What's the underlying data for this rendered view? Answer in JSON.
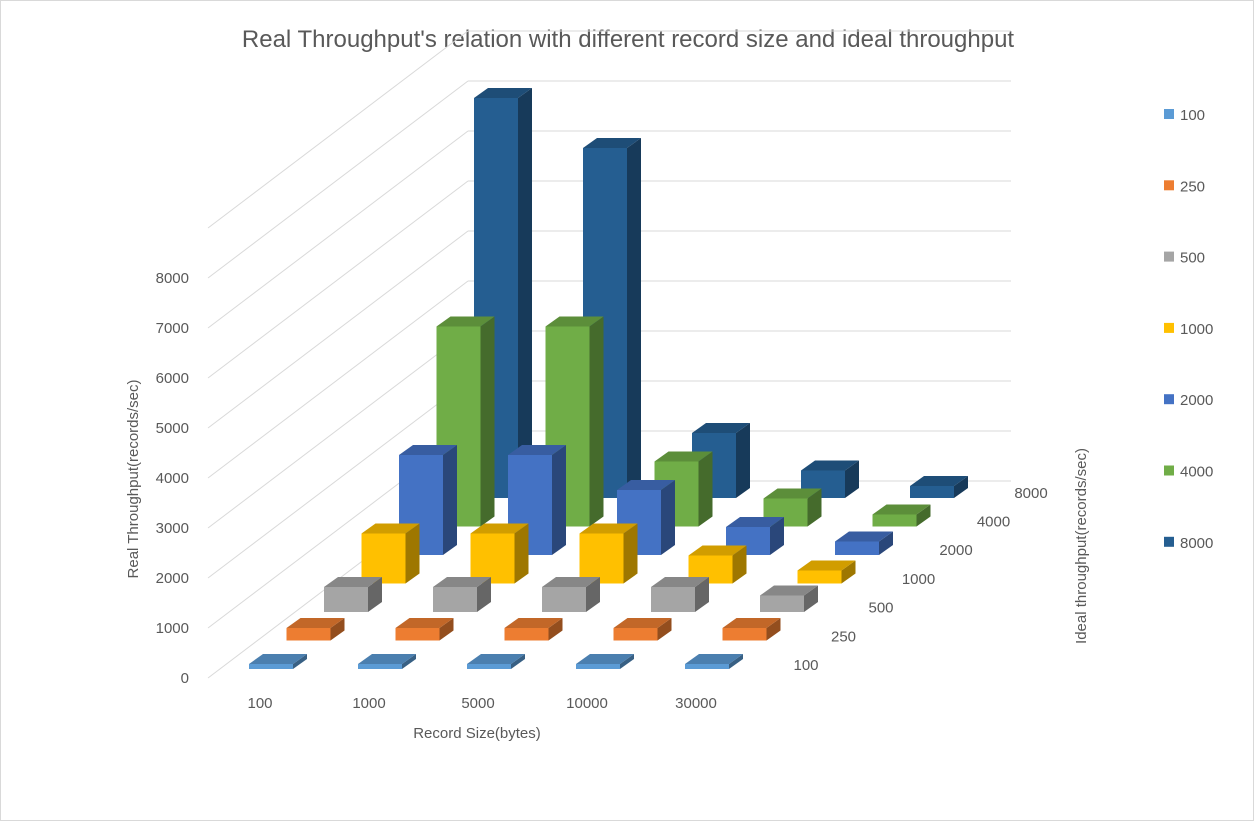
{
  "chart_data": {
    "type": "bar",
    "subtype": "3d-column",
    "title": "Real Throughput's relation with different record size and ideal throughput",
    "xlabel": "Record Size(bytes)",
    "ylabel": "Real Throughput(records/sec)",
    "zlabel": "Ideal throughput(records/sec)",
    "categories": [
      "100",
      "1000",
      "5000",
      "10000",
      "30000"
    ],
    "y_ticks": [
      "0",
      "1000",
      "2000",
      "3000",
      "4000",
      "5000",
      "6000",
      "7000",
      "8000"
    ],
    "ylim": [
      0,
      8000
    ],
    "grid": true,
    "legend_position": "right",
    "series": [
      {
        "name": "100",
        "color": "#5B9BD5",
        "values": [
          100,
          100,
          100,
          100,
          100
        ]
      },
      {
        "name": "250",
        "color": "#ED7D31",
        "values": [
          250,
          250,
          250,
          250,
          250
        ]
      },
      {
        "name": "500",
        "color": "#A5A5A5",
        "values": [
          500,
          500,
          500,
          500,
          330
        ]
      },
      {
        "name": "1000",
        "color": "#FFC000",
        "values": [
          1000,
          1000,
          1000,
          560,
          260
        ]
      },
      {
        "name": "2000",
        "color": "#4472C4",
        "values": [
          2000,
          2000,
          1300,
          560,
          270
        ]
      },
      {
        "name": "4000",
        "color": "#70AD47",
        "values": [
          4000,
          4000,
          1300,
          560,
          240
        ]
      },
      {
        "name": "8000",
        "color": "#255E91",
        "values": [
          8000,
          7000,
          1300,
          550,
          240
        ]
      }
    ]
  }
}
